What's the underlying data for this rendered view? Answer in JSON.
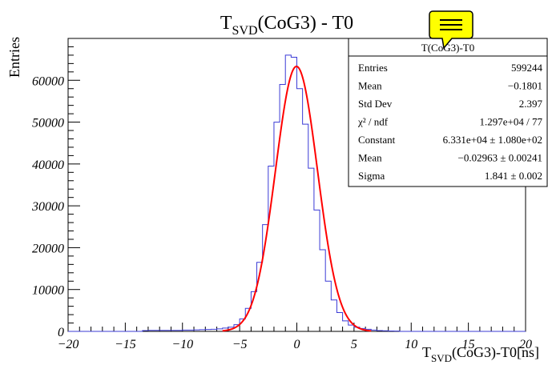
{
  "chart_data": {
    "type": "histogram",
    "title": {
      "base": "T",
      "sub": "SVD",
      "rest": "(CoG3) - T0"
    },
    "xlabel": {
      "base": "T",
      "sub": "SVD",
      "rest": "(CoG3)-T0[ns]"
    },
    "ylabel": "Entries",
    "xlim": [
      -20,
      20
    ],
    "ylim": [
      0,
      70000
    ],
    "x_ticks": [
      -20,
      -15,
      -10,
      -5,
      0,
      5,
      10,
      15,
      20
    ],
    "x_tick_labels": [
      "−20",
      "−15",
      "−10",
      "−5",
      "0",
      "5",
      "10",
      "15",
      "20"
    ],
    "y_ticks": [
      0,
      10000,
      20000,
      30000,
      40000,
      50000,
      60000
    ],
    "y_tick_labels": [
      "0",
      "10000",
      "20000",
      "30000",
      "40000",
      "50000",
      "60000"
    ],
    "bin_width": 0.5,
    "histogram": {
      "name": "T(CoG3)-T0",
      "color": "#3b3bd6",
      "bin_centers": [
        -13.25,
        -12.75,
        -12.25,
        -11.75,
        -11.25,
        -10.75,
        -10.25,
        -9.75,
        -9.25,
        -8.75,
        -8.25,
        -7.75,
        -7.25,
        -6.75,
        -6.25,
        -5.75,
        -5.25,
        -4.75,
        -4.25,
        -3.75,
        -3.25,
        -2.75,
        -2.25,
        -1.75,
        -1.25,
        -0.75,
        -0.25,
        0.25,
        0.75,
        1.25,
        1.75,
        2.25,
        2.75,
        3.25,
        3.75,
        4.25,
        4.75,
        5.25,
        5.75,
        6.25,
        6.75,
        7.25,
        7.75,
        8.25,
        8.75
      ],
      "counts": [
        200,
        250,
        250,
        250,
        250,
        250,
        250,
        300,
        300,
        350,
        400,
        450,
        500,
        600,
        800,
        1000,
        1600,
        3000,
        5500,
        9500,
        16500,
        25500,
        39500,
        50000,
        59000,
        66000,
        65500,
        58000,
        49500,
        39000,
        29000,
        19500,
        12000,
        7500,
        4500,
        2500,
        1500,
        1000,
        700,
        500,
        300,
        200,
        150,
        100,
        80
      ]
    },
    "fit": {
      "function": "gaus",
      "color": "#ff0000",
      "constant": 63310,
      "mean": -0.02963,
      "sigma": 1.841
    },
    "legend_position": "top-right",
    "stats": {
      "title": "T(CoG3)-T0",
      "rows": [
        {
          "label": "Entries",
          "value": "599244"
        },
        {
          "label": "Mean",
          "value": "−0.1801"
        },
        {
          "label": "Std Dev",
          "value": "2.397"
        },
        {
          "label": "χ² / ndf",
          "value": "1.297e+04 / 77"
        },
        {
          "label": "Constant",
          "value": "6.331e+04 ± 1.080e+02"
        },
        {
          "label": "Mean",
          "value": "−0.02963 ± 0.00241"
        },
        {
          "label": "Sigma",
          "value": "1.841 ± 0.002"
        }
      ]
    },
    "note_icon_color": "#ffff00",
    "grid": false
  }
}
